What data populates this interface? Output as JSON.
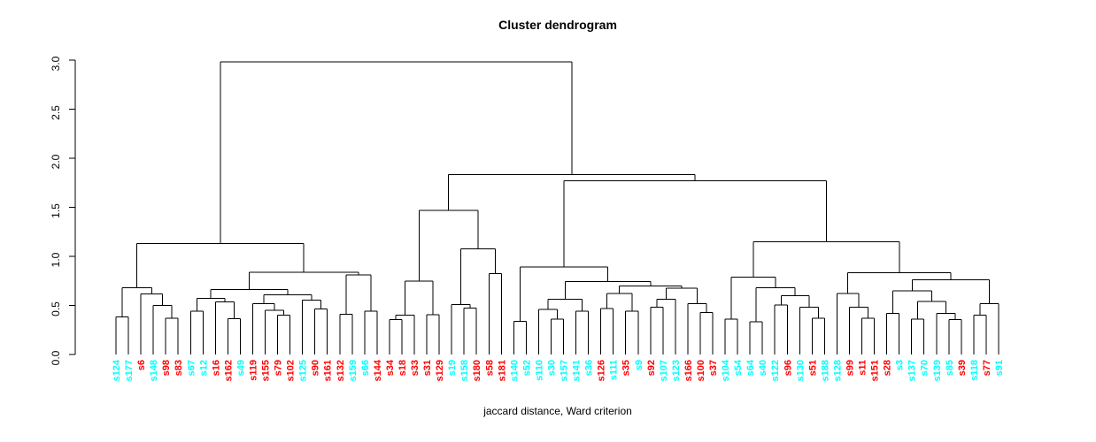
{
  "chart_data": {
    "type": "dendrogram",
    "title": "Cluster dendrogram",
    "xlabel": "jaccard distance, Ward criterion",
    "ylabel": "",
    "ylim": [
      0.0,
      3.0
    ],
    "yticks": [
      "0.0",
      "0.5",
      "1.0",
      "1.5",
      "2.0",
      "2.5",
      "3.0"
    ],
    "grid": false,
    "legend": "none",
    "line_color": "#000000",
    "label_colors": {
      "cyan": "#00FFFF",
      "red": "#FF0000"
    },
    "root_height": 2.98,
    "leaves": [
      {
        "label": "s124",
        "color": "cyan"
      },
      {
        "label": "s177",
        "color": "cyan"
      },
      {
        "label": "s6",
        "color": "red"
      },
      {
        "label": "s148",
        "color": "cyan"
      },
      {
        "label": "s98",
        "color": "red"
      },
      {
        "label": "s83",
        "color": "red"
      },
      {
        "label": "s67",
        "color": "cyan"
      },
      {
        "label": "s12",
        "color": "cyan"
      },
      {
        "label": "s16",
        "color": "red"
      },
      {
        "label": "s162",
        "color": "red"
      },
      {
        "label": "s49",
        "color": "cyan"
      },
      {
        "label": "s119",
        "color": "red"
      },
      {
        "label": "s155",
        "color": "red"
      },
      {
        "label": "s79",
        "color": "red"
      },
      {
        "label": "s102",
        "color": "red"
      },
      {
        "label": "s125",
        "color": "cyan"
      },
      {
        "label": "s90",
        "color": "red"
      },
      {
        "label": "s161",
        "color": "red"
      },
      {
        "label": "s132",
        "color": "red"
      },
      {
        "label": "s159",
        "color": "cyan"
      },
      {
        "label": "s66",
        "color": "cyan"
      },
      {
        "label": "s144",
        "color": "red"
      },
      {
        "label": "s34",
        "color": "red"
      },
      {
        "label": "s18",
        "color": "red"
      },
      {
        "label": "s33",
        "color": "red"
      },
      {
        "label": "s31",
        "color": "red"
      },
      {
        "label": "s129",
        "color": "red"
      },
      {
        "label": "s19",
        "color": "cyan"
      },
      {
        "label": "s158",
        "color": "cyan"
      },
      {
        "label": "s180",
        "color": "red"
      },
      {
        "label": "s58",
        "color": "red"
      },
      {
        "label": "s181",
        "color": "red"
      },
      {
        "label": "s140",
        "color": "cyan"
      },
      {
        "label": "s52",
        "color": "cyan"
      },
      {
        "label": "s110",
        "color": "cyan"
      },
      {
        "label": "s30",
        "color": "cyan"
      },
      {
        "label": "s157",
        "color": "cyan"
      },
      {
        "label": "s141",
        "color": "cyan"
      },
      {
        "label": "s36",
        "color": "cyan"
      },
      {
        "label": "s126",
        "color": "red"
      },
      {
        "label": "s111",
        "color": "cyan"
      },
      {
        "label": "s35",
        "color": "red"
      },
      {
        "label": "s9",
        "color": "cyan"
      },
      {
        "label": "s92",
        "color": "red"
      },
      {
        "label": "s107",
        "color": "cyan"
      },
      {
        "label": "s123",
        "color": "cyan"
      },
      {
        "label": "s166",
        "color": "red"
      },
      {
        "label": "s100",
        "color": "red"
      },
      {
        "label": "s37",
        "color": "red"
      },
      {
        "label": "s104",
        "color": "cyan"
      },
      {
        "label": "s54",
        "color": "cyan"
      },
      {
        "label": "s64",
        "color": "cyan"
      },
      {
        "label": "s40",
        "color": "cyan"
      },
      {
        "label": "s122",
        "color": "cyan"
      },
      {
        "label": "s96",
        "color": "red"
      },
      {
        "label": "s130",
        "color": "cyan"
      },
      {
        "label": "s51",
        "color": "red"
      },
      {
        "label": "s188",
        "color": "cyan"
      },
      {
        "label": "s128",
        "color": "cyan"
      },
      {
        "label": "s99",
        "color": "red"
      },
      {
        "label": "s11",
        "color": "red"
      },
      {
        "label": "s151",
        "color": "red"
      },
      {
        "label": "s28",
        "color": "red"
      },
      {
        "label": "s3",
        "color": "cyan"
      },
      {
        "label": "s137",
        "color": "cyan"
      },
      {
        "label": "s70",
        "color": "cyan"
      },
      {
        "label": "s139",
        "color": "cyan"
      },
      {
        "label": "s85",
        "color": "cyan"
      },
      {
        "label": "s39",
        "color": "red"
      },
      {
        "label": "s118",
        "color": "cyan"
      },
      {
        "label": "s77",
        "color": "red"
      },
      {
        "label": "s91",
        "color": "cyan"
      }
    ],
    "tree": [
      2.98,
      [
        1.13,
        [
          0.68,
          [
            0.385,
            0,
            1
          ],
          [
            0.615,
            2,
            [
              0.5,
              3,
              [
                0.37,
                4,
                5
              ]
            ]
          ]
        ],
        [
          0.84,
          [
            0.66,
            [
              0.574,
              [
                0.44,
                6,
                7
              ],
              [
                0.535,
                8,
                [
                  0.365,
                  9,
                  10
                ]
              ]
            ],
            [
              0.61,
              [
                0.52,
                11,
                [
                  0.45,
                  12,
                  [
                    0.4,
                    13,
                    14
                  ]
                ]
              ],
              [
                0.555,
                15,
                [
                  0.465,
                  16,
                  17
                ]
              ]
            ]
          ],
          [
            0.81,
            [
              0.41,
              18,
              19
            ],
            [
              0.44,
              20,
              21
            ]
          ]
        ]
      ],
      [
        1.835,
        [
          1.47,
          [
            0.75,
            [
              0.4,
              [
                0.355,
                22,
                23
              ],
              24
            ],
            [
              0.405,
              25,
              26
            ]
          ],
          [
            1.075,
            [
              0.51,
              27,
              [
                0.475,
                28,
                29
              ]
            ],
            [
              0.825,
              30,
              31
            ]
          ]
        ],
        [
          1.77,
          [
            0.89,
            [
              0.34,
              32,
              33
            ],
            [
              0.745,
              [
                0.565,
                [
                  0.46,
                  34,
                  [
                    0.36,
                    35,
                    36
                  ]
                ],
                [
                  0.44,
                  37,
                  38
                ]
              ],
              [
                0.7,
                [
                  0.62,
                  [
                    0.47,
                    39,
                    40
                  ],
                  [
                    0.44,
                    41,
                    42
                  ]
                ],
                [
                  0.675,
                  [
                    0.565,
                    [
                      0.48,
                      43,
                      44
                    ],
                    45
                  ],
                  [
                    0.52,
                    46,
                    [
                      0.43,
                      47,
                      48
                    ]
                  ]
                ]
              ]
            ]
          ],
          [
            1.15,
            [
              0.79,
              [
                0.36,
                49,
                50
              ],
              [
                0.68,
                [
                  0.335,
                  51,
                  52
                ],
                [
                  0.6,
                  [
                    0.505,
                    53,
                    54
                  ],
                  [
                    0.48,
                    55,
                    [
                      0.37,
                      56,
                      57
                    ]
                  ]
                ]
              ]
            ],
            [
              0.835,
              [
                0.62,
                58,
                [
                  0.48,
                  59,
                  [
                    0.37,
                    60,
                    61
                  ]
                ]
              ],
              [
                0.76,
                [
                  0.65,
                  [
                    0.42,
                    62,
                    63
                  ],
                  [
                    0.54,
                    [
                      0.36,
                      64,
                      65
                    ],
                    [
                      0.42,
                      66,
                      [
                        0.355,
                        67,
                        68
                      ]
                    ]
                  ]
                ],
                [
                  0.52,
                  [
                    0.4,
                    69,
                    70
                  ],
                  71
                ]
              ]
            ]
          ]
        ]
      ]
    ]
  }
}
